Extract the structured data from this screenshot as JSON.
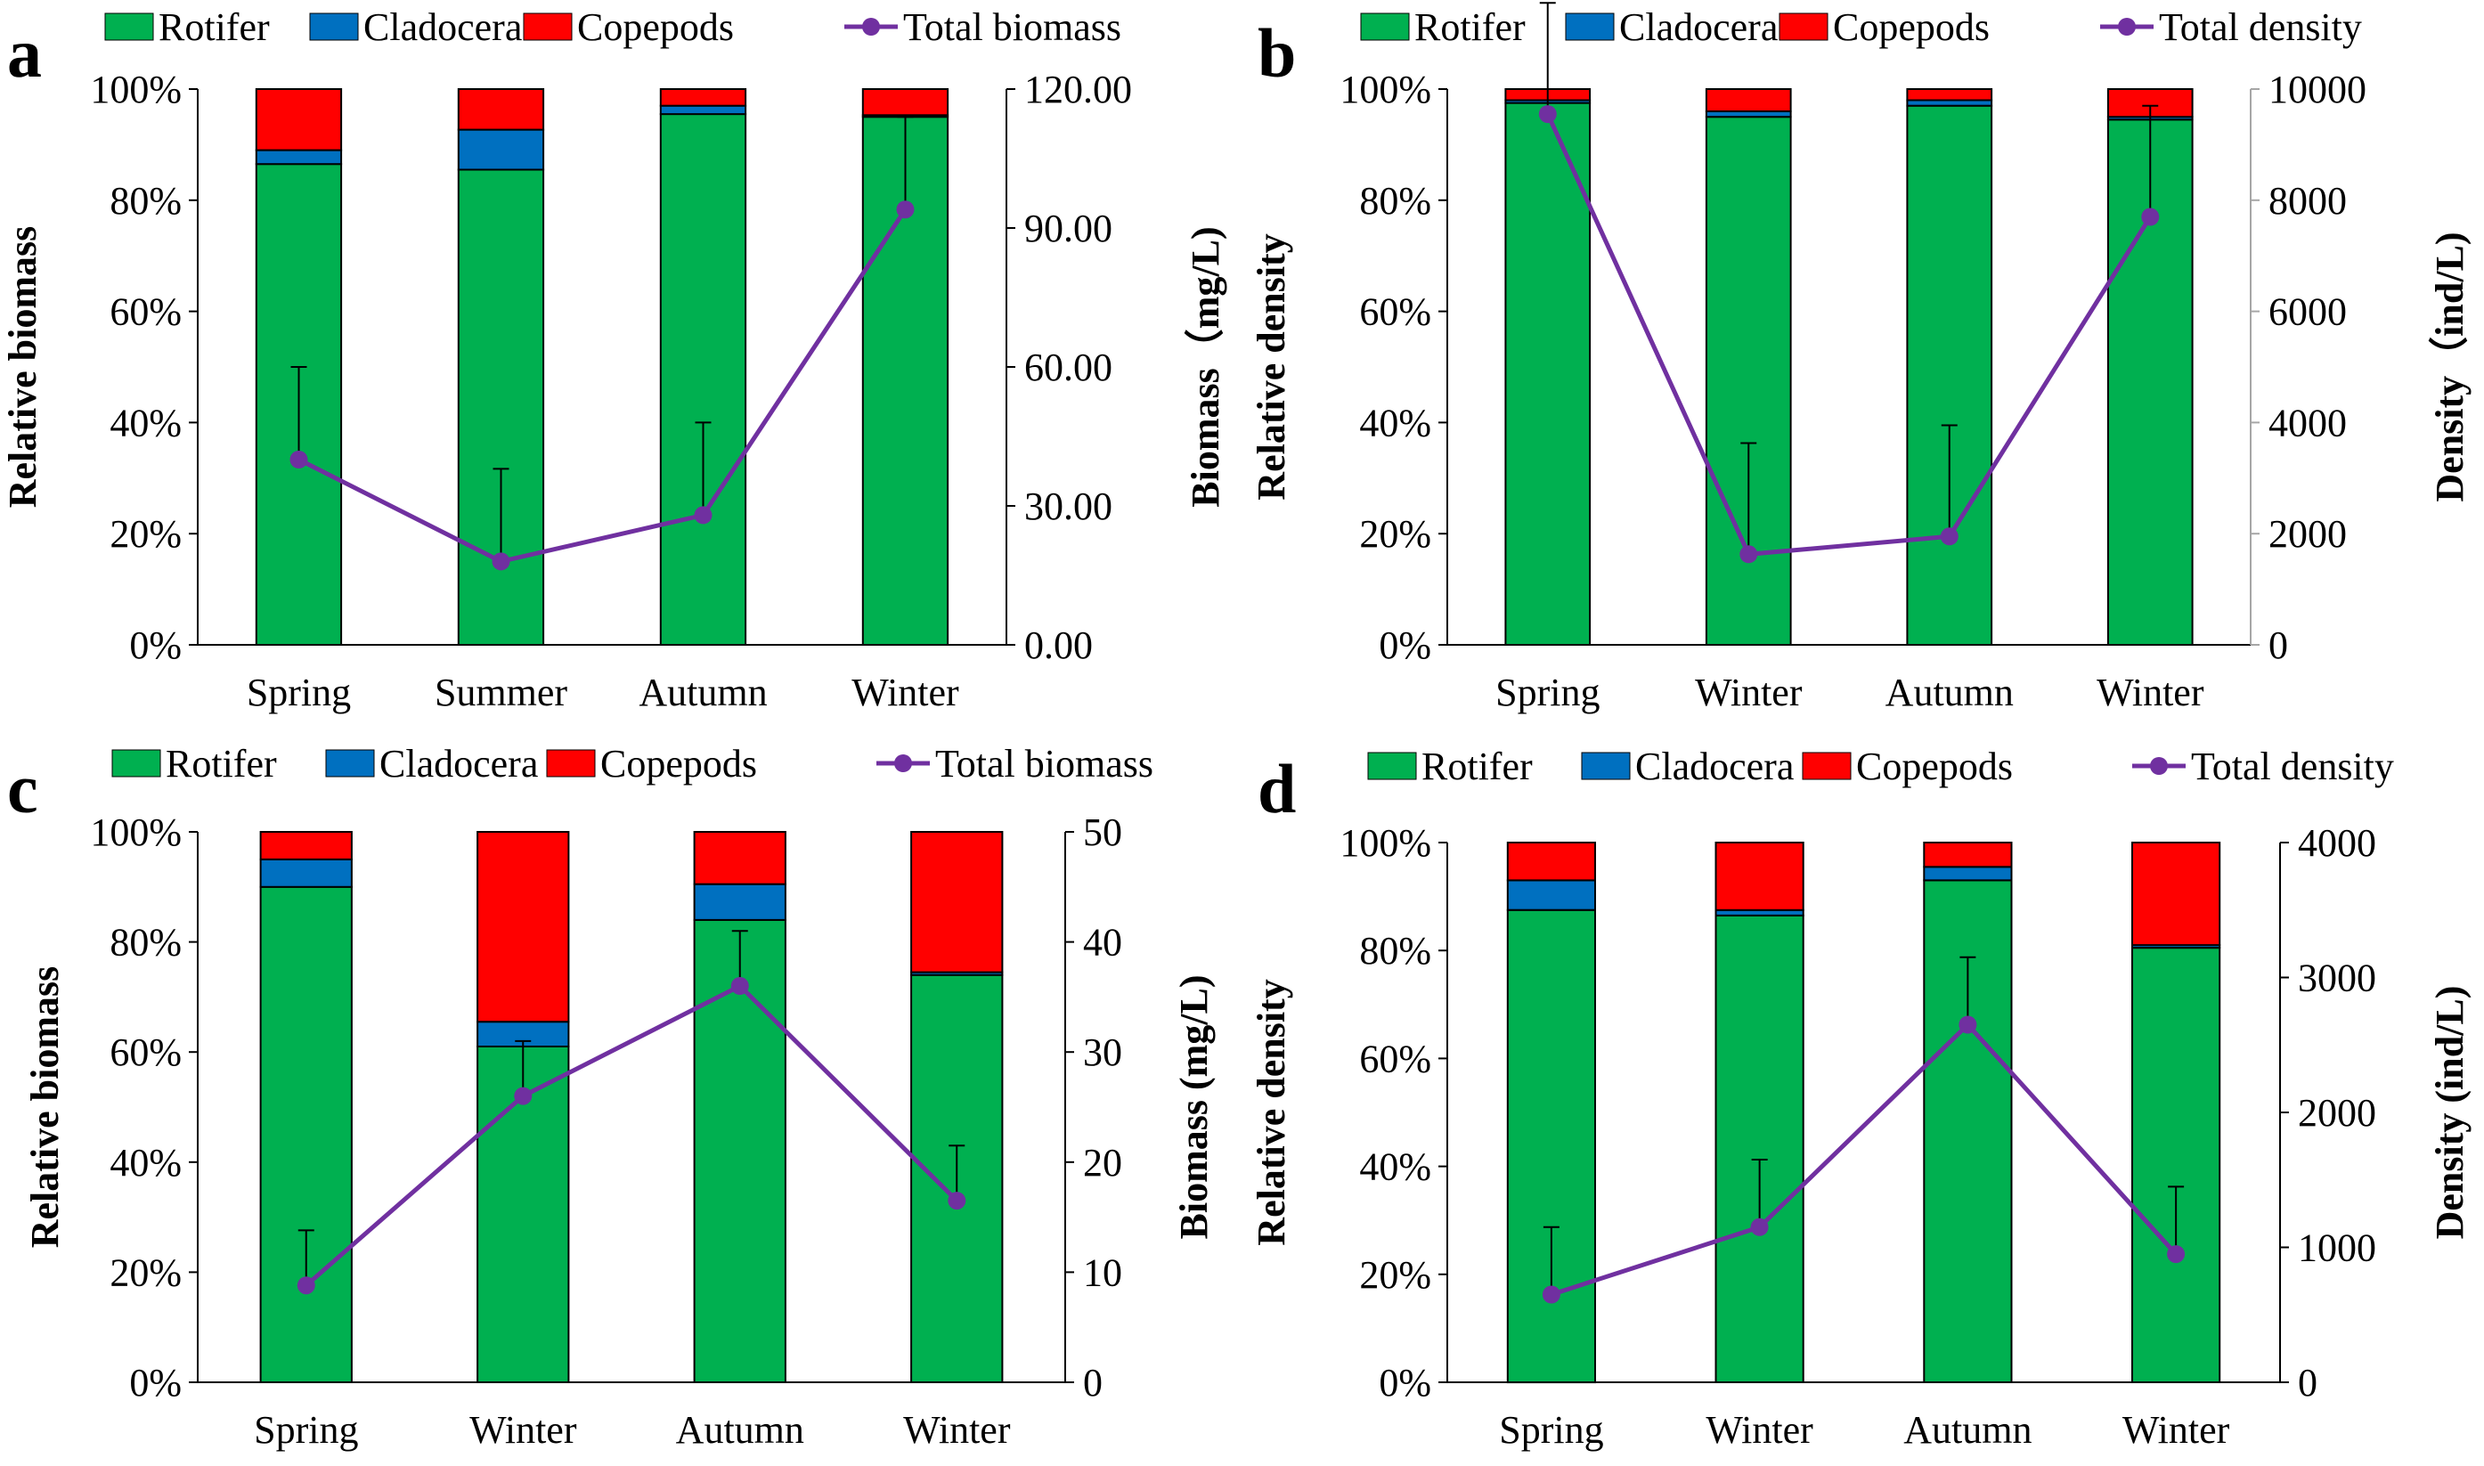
{
  "figure": {
    "colors": {
      "rotifer": "#00b050",
      "cladocera": "#0070c0",
      "copepods": "#ff0000",
      "total": "#7030a0",
      "axis": "#000000",
      "right_axis_b": "#a6a6a6"
    }
  },
  "chart_data": [
    {
      "panel": "a",
      "type": "bar",
      "stacked": true,
      "categories": [
        "Spring",
        "Summer",
        "Autumn",
        "Winter"
      ],
      "series": [
        {
          "name": "Rotifer",
          "values": [
            86.5,
            85.5,
            95.5,
            95.0
          ]
        },
        {
          "name": "Cladocera",
          "values": [
            2.5,
            7.2,
            1.5,
            0.3
          ]
        },
        {
          "name": "Copepods",
          "values": [
            11.0,
            7.3,
            3.0,
            4.7
          ]
        }
      ],
      "line": {
        "name": "Total biomass",
        "values": [
          40.0,
          18.0,
          28.0,
          94.0
        ],
        "errors": [
          20.0,
          20.0,
          20.0,
          20.0
        ]
      },
      "legend": [
        "Rotifer",
        "Cladocera",
        "Copepods",
        "Total biomass"
      ],
      "ylabel": "Relative biomass",
      "ylabel_right": "Biomass（mg/L)",
      "ylim": [
        0,
        100
      ],
      "ylim_right": [
        0,
        120
      ],
      "yticks": [
        "0%",
        "20%",
        "40%",
        "60%",
        "80%",
        "100%"
      ],
      "yticks_right": [
        "0.00",
        "30.00",
        "60.00",
        "90.00",
        "120.00"
      ]
    },
    {
      "panel": "b",
      "type": "bar",
      "stacked": true,
      "categories": [
        "Spring",
        "Winter",
        "Autumn",
        "Winter"
      ],
      "series": [
        {
          "name": "Rotifer",
          "values": [
            97.5,
            95.0,
            97.0,
            94.5
          ]
        },
        {
          "name": "Cladocera",
          "values": [
            0.5,
            1.0,
            1.0,
            0.5
          ]
        },
        {
          "name": "Copepods",
          "values": [
            2.0,
            4.0,
            2.0,
            5.0
          ]
        }
      ],
      "line": {
        "name": "Total density",
        "values": [
          9550,
          1630,
          1950,
          7700
        ],
        "errors": [
          2000,
          2000,
          2000,
          2000
        ]
      },
      "legend": [
        "Rotifer",
        "Cladocera",
        "Copepods",
        "Total density"
      ],
      "ylabel": "Relative density",
      "ylabel_right": "Density（ind/L)",
      "ylim": [
        0,
        100
      ],
      "ylim_right": [
        0,
        10000
      ],
      "yticks": [
        "0%",
        "20%",
        "40%",
        "60%",
        "80%",
        "100%"
      ],
      "yticks_right": [
        "0",
        "2000",
        "4000",
        "6000",
        "8000",
        "10000"
      ]
    },
    {
      "panel": "c",
      "type": "bar",
      "stacked": true,
      "categories": [
        "Spring",
        "Winter",
        "Autumn",
        "Winter"
      ],
      "series": [
        {
          "name": "Rotifer",
          "values": [
            90.0,
            61.0,
            84.0,
            74.0
          ]
        },
        {
          "name": "Cladocera",
          "values": [
            5.0,
            4.5,
            6.5,
            0.5
          ]
        },
        {
          "name": "Copepods",
          "values": [
            5.0,
            34.5,
            9.5,
            25.5
          ]
        }
      ],
      "line": {
        "name": "Total biomass",
        "values": [
          8.8,
          26.0,
          36.0,
          16.5
        ],
        "errors": [
          5.0,
          5.0,
          5.0,
          5.0
        ]
      },
      "legend": [
        "Rotifer",
        "Cladocera",
        "Copepods",
        "Total biomass"
      ],
      "ylabel": "Relative biomass",
      "ylabel_right": "Biomass (mg/L)",
      "ylim": [
        0,
        100
      ],
      "ylim_right": [
        0,
        50
      ],
      "yticks": [
        "0%",
        "20%",
        "40%",
        "60%",
        "80%",
        "100%"
      ],
      "yticks_right": [
        "0",
        "10",
        "20",
        "30",
        "40",
        "50"
      ]
    },
    {
      "panel": "d",
      "type": "bar",
      "stacked": true,
      "categories": [
        "Spring",
        "Winter",
        "Autumn",
        "Winter"
      ],
      "series": [
        {
          "name": "Rotifer",
          "values": [
            87.5,
            86.5,
            93.0,
            80.5
          ]
        },
        {
          "name": "Cladocera",
          "values": [
            5.5,
            1.0,
            2.5,
            0.5
          ]
        },
        {
          "name": "Copepods",
          "values": [
            7.0,
            12.5,
            4.5,
            19.0
          ]
        }
      ],
      "line": {
        "name": "Total density",
        "values": [
          650,
          1150,
          2650,
          950
        ],
        "errors": [
          500,
          500,
          500,
          500
        ]
      },
      "legend": [
        "Rotifer",
        "Cladocera",
        "Copepods",
        "Total density"
      ],
      "ylabel": "Relative density",
      "ylabel_right": "Density (ind/L)",
      "ylim": [
        0,
        100
      ],
      "ylim_right": [
        0,
        4000
      ],
      "yticks": [
        "0%",
        "20%",
        "40%",
        "60%",
        "80%",
        "100%"
      ],
      "yticks_right": [
        "0",
        "1000",
        "2000",
        "3000",
        "4000"
      ]
    }
  ]
}
